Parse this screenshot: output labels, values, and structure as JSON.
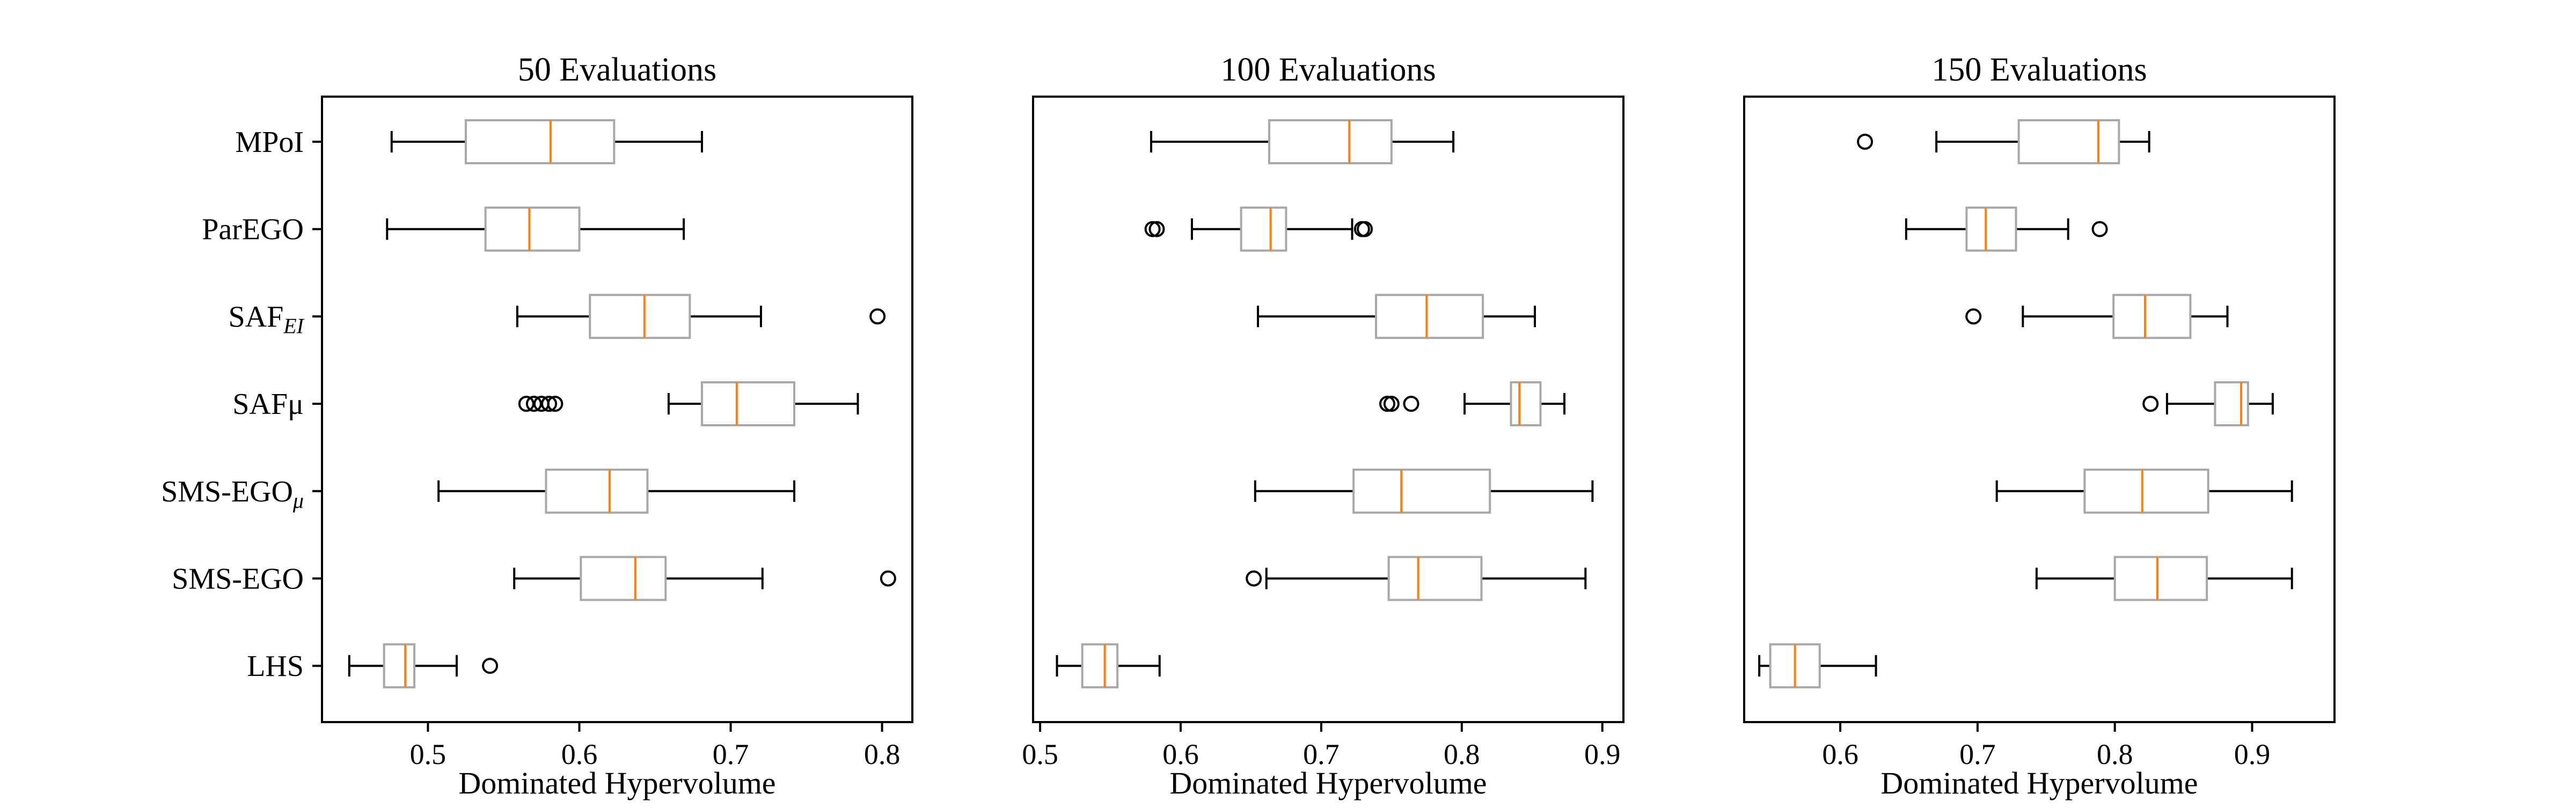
{
  "chart_data": [
    {
      "type": "boxplot",
      "title": "50 Evaluations",
      "xlabel": "Dominated Hypervolume",
      "xlim": [
        0.43,
        0.82
      ],
      "xticks": [
        0.5,
        0.6,
        0.7,
        0.8
      ],
      "xtick_labels": [
        "0.5",
        "0.6",
        "0.7",
        "0.8"
      ],
      "show_ylabels": true,
      "categories": [
        {
          "main": "MPoI",
          "sub": ""
        },
        {
          "main": "ParEGO",
          "sub": ""
        },
        {
          "main": "SAF",
          "sub": "EI"
        },
        {
          "main": "SAFμ",
          "sub": ""
        },
        {
          "main": "SMS-EGO",
          "sub": "μ"
        },
        {
          "main": "SMS-EGO",
          "sub": ""
        },
        {
          "main": "LHS",
          "sub": ""
        }
      ],
      "boxes": [
        {
          "whislo": 0.476,
          "q1": 0.525,
          "med": 0.581,
          "q3": 0.623,
          "whishi": 0.681,
          "fliers": []
        },
        {
          "whislo": 0.473,
          "q1": 0.538,
          "med": 0.567,
          "q3": 0.6,
          "whishi": 0.669,
          "fliers": []
        },
        {
          "whislo": 0.559,
          "q1": 0.607,
          "med": 0.643,
          "q3": 0.673,
          "whishi": 0.72,
          "fliers": [
            0.797
          ]
        },
        {
          "whislo": 0.659,
          "q1": 0.681,
          "med": 0.704,
          "q3": 0.742,
          "whishi": 0.784,
          "fliers": [
            0.565,
            0.57,
            0.575,
            0.58,
            0.584
          ]
        },
        {
          "whislo": 0.507,
          "q1": 0.578,
          "med": 0.62,
          "q3": 0.645,
          "whishi": 0.742,
          "fliers": []
        },
        {
          "whislo": 0.557,
          "q1": 0.601,
          "med": 0.637,
          "q3": 0.657,
          "whishi": 0.721,
          "fliers": [
            0.804
          ]
        },
        {
          "whislo": 0.448,
          "q1": 0.471,
          "med": 0.485,
          "q3": 0.491,
          "whishi": 0.519,
          "fliers": [
            0.541
          ]
        }
      ]
    },
    {
      "type": "boxplot",
      "title": "100 Evaluations",
      "xlabel": "Dominated Hypervolume",
      "xlim": [
        0.495,
        0.915
      ],
      "xticks": [
        0.5,
        0.6,
        0.7,
        0.8,
        0.9
      ],
      "xtick_labels": [
        "0.5",
        "0.6",
        "0.7",
        "0.8",
        "0.9"
      ],
      "show_ylabels": false,
      "boxes": [
        {
          "whislo": 0.579,
          "q1": 0.663,
          "med": 0.72,
          "q3": 0.75,
          "whishi": 0.794,
          "fliers": []
        },
        {
          "whislo": 0.608,
          "q1": 0.643,
          "med": 0.664,
          "q3": 0.675,
          "whishi": 0.722,
          "fliers": [
            0.58,
            0.583,
            0.729,
            0.731
          ]
        },
        {
          "whislo": 0.655,
          "q1": 0.739,
          "med": 0.775,
          "q3": 0.815,
          "whishi": 0.852,
          "fliers": []
        },
        {
          "whislo": 0.802,
          "q1": 0.835,
          "med": 0.841,
          "q3": 0.856,
          "whishi": 0.873,
          "fliers": [
            0.747,
            0.75,
            0.764
          ]
        },
        {
          "whislo": 0.653,
          "q1": 0.723,
          "med": 0.757,
          "q3": 0.82,
          "whishi": 0.893,
          "fliers": []
        },
        {
          "whislo": 0.661,
          "q1": 0.748,
          "med": 0.769,
          "q3": 0.814,
          "whishi": 0.888,
          "fliers": [
            0.652
          ]
        },
        {
          "whislo": 0.512,
          "q1": 0.53,
          "med": 0.546,
          "q3": 0.555,
          "whishi": 0.585,
          "fliers": []
        }
      ]
    },
    {
      "type": "boxplot",
      "title": "150 Evaluations",
      "xlabel": "Dominated Hypervolume",
      "xlim": [
        0.53,
        0.96
      ],
      "xticks": [
        0.6,
        0.7,
        0.8,
        0.9
      ],
      "xtick_labels": [
        "0.6",
        "0.7",
        "0.8",
        "0.9"
      ],
      "show_ylabels": false,
      "boxes": [
        {
          "whislo": 0.67,
          "q1": 0.73,
          "med": 0.788,
          "q3": 0.803,
          "whishi": 0.825,
          "fliers": [
            0.618
          ]
        },
        {
          "whislo": 0.648,
          "q1": 0.692,
          "med": 0.706,
          "q3": 0.728,
          "whishi": 0.766,
          "fliers": [
            0.789
          ]
        },
        {
          "whislo": 0.733,
          "q1": 0.799,
          "med": 0.822,
          "q3": 0.855,
          "whishi": 0.882,
          "fliers": [
            0.697
          ]
        },
        {
          "whislo": 0.838,
          "q1": 0.873,
          "med": 0.892,
          "q3": 0.897,
          "whishi": 0.915,
          "fliers": [
            0.826
          ]
        },
        {
          "whislo": 0.714,
          "q1": 0.778,
          "med": 0.82,
          "q3": 0.868,
          "whishi": 0.929,
          "fliers": []
        },
        {
          "whislo": 0.743,
          "q1": 0.8,
          "med": 0.831,
          "q3": 0.867,
          "whishi": 0.929,
          "fliers": []
        },
        {
          "whislo": 0.541,
          "q1": 0.549,
          "med": 0.567,
          "q3": 0.585,
          "whishi": 0.626,
          "fliers": []
        }
      ]
    }
  ]
}
